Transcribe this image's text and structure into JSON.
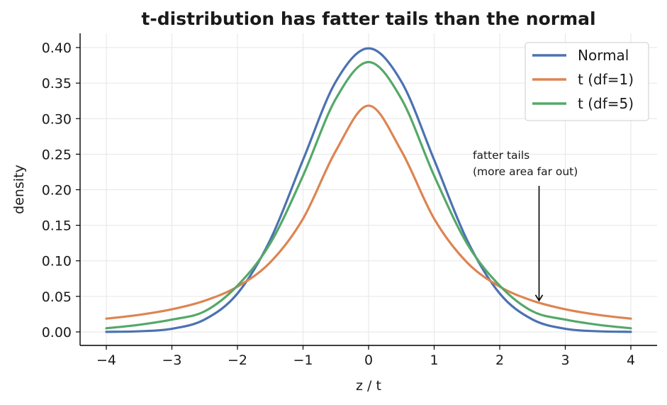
{
  "chart_data": {
    "type": "line",
    "title": "t-distribution has fatter tails than the normal",
    "xlabel": "z / t",
    "ylabel": "density",
    "xlim": [
      -4.4,
      4.4
    ],
    "ylim": [
      -0.019,
      0.42
    ],
    "xticks": [
      -4,
      -3,
      -2,
      -1,
      0,
      1,
      2,
      3,
      4
    ],
    "xtick_labels": [
      "−4",
      "−3",
      "−2",
      "−1",
      "0",
      "1",
      "2",
      "3",
      "4"
    ],
    "yticks": [
      0.0,
      0.05,
      0.1,
      0.15,
      0.2,
      0.25,
      0.3,
      0.35,
      0.4
    ],
    "ytick_labels": [
      "0.00",
      "0.05",
      "0.10",
      "0.15",
      "0.20",
      "0.25",
      "0.30",
      "0.35",
      "0.40"
    ],
    "grid": true,
    "legend_position": "top-right",
    "x": [
      -4,
      -3.5,
      -3,
      -2.5,
      -2,
      -1.5,
      -1,
      -0.5,
      0,
      0.5,
      1,
      1.5,
      2,
      2.5,
      3,
      3.5,
      4
    ],
    "series": [
      {
        "name": "Normal",
        "color": "#4c72b0",
        "values": [
          0.0001,
          0.0009,
          0.0044,
          0.0175,
          0.054,
          0.1295,
          0.242,
          0.3521,
          0.3989,
          0.3521,
          0.242,
          0.1295,
          0.054,
          0.0175,
          0.0044,
          0.0009,
          0.0001
        ]
      },
      {
        "name": "t (df=1)",
        "color": "#dd8452",
        "values": [
          0.0187,
          0.024,
          0.0318,
          0.0439,
          0.0637,
          0.0979,
          0.1592,
          0.2546,
          0.3183,
          0.2546,
          0.1592,
          0.0979,
          0.0637,
          0.0439,
          0.0318,
          0.024,
          0.0187
        ]
      },
      {
        "name": "t (df=5)",
        "color": "#55a868",
        "values": [
          0.0051,
          0.01,
          0.0173,
          0.029,
          0.0651,
          0.1245,
          0.2197,
          0.3279,
          0.3796,
          0.3279,
          0.2197,
          0.1245,
          0.0651,
          0.029,
          0.0173,
          0.01,
          0.0051
        ]
      }
    ],
    "annotation": {
      "lines": [
        "fatter tails",
        "(more area far out)"
      ],
      "arrow_to": {
        "x": 2.6,
        "y": 0.043
      }
    }
  }
}
